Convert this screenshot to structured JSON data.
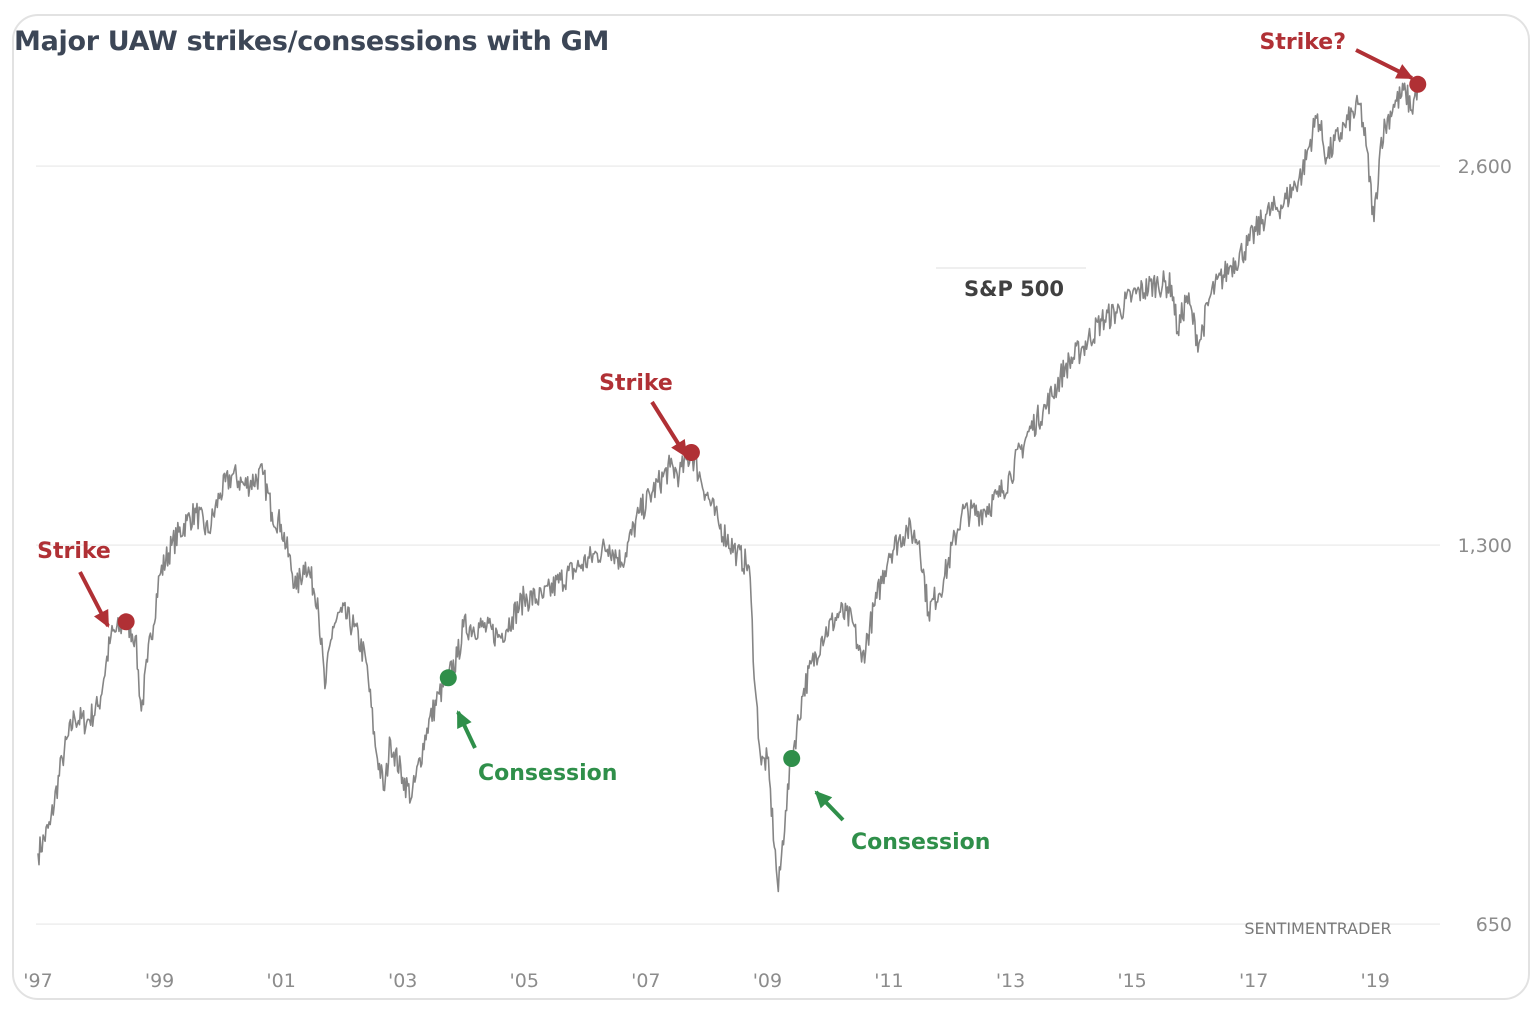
{
  "chart_data": {
    "type": "line",
    "title": "Major UAW strikes/consessions with GM",
    "series_label": "S&P 500",
    "y_scale": "log",
    "ylim": [
      620,
      3100
    ],
    "xlim": [
      1997.0,
      2020.0
    ],
    "grid": true,
    "y_ticks": [
      {
        "value": 650,
        "label": "650"
      },
      {
        "value": 1300,
        "label": "1,300"
      },
      {
        "value": 2600,
        "label": "2,600"
      }
    ],
    "x_ticks": [
      {
        "value": 1997.0,
        "label": "'97"
      },
      {
        "value": 1999.0,
        "label": "'99"
      },
      {
        "value": 2001.0,
        "label": "'01"
      },
      {
        "value": 2003.0,
        "label": "'03"
      },
      {
        "value": 2005.0,
        "label": "'05"
      },
      {
        "value": 2007.0,
        "label": "'07"
      },
      {
        "value": 2009.0,
        "label": "'09"
      },
      {
        "value": 2011.0,
        "label": "'11"
      },
      {
        "value": 2013.0,
        "label": "'13"
      },
      {
        "value": 2015.0,
        "label": "'15"
      },
      {
        "value": 2017.0,
        "label": "'17"
      },
      {
        "value": 2019.0,
        "label": "'19"
      }
    ],
    "series": [
      {
        "name": "S&P 500",
        "color": "#858585",
        "points": [
          [
            1997.0,
            740
          ],
          [
            1997.2,
            780
          ],
          [
            1997.4,
            880
          ],
          [
            1997.6,
            950
          ],
          [
            1997.8,
            940
          ],
          [
            1998.0,
            970
          ],
          [
            1998.2,
            1100
          ],
          [
            1998.45,
            1130
          ],
          [
            1998.6,
            1100
          ],
          [
            1998.7,
            960
          ],
          [
            1998.8,
            1050
          ],
          [
            1999.0,
            1230
          ],
          [
            1999.2,
            1300
          ],
          [
            1999.45,
            1360
          ],
          [
            1999.6,
            1380
          ],
          [
            1999.8,
            1330
          ],
          [
            2000.0,
            1430
          ],
          [
            2000.2,
            1480
          ],
          [
            2000.4,
            1450
          ],
          [
            2000.7,
            1480
          ],
          [
            2000.85,
            1380
          ],
          [
            2001.0,
            1350
          ],
          [
            2001.25,
            1200
          ],
          [
            2001.4,
            1260
          ],
          [
            2001.6,
            1180
          ],
          [
            2001.72,
            1000
          ],
          [
            2001.85,
            1120
          ],
          [
            2002.0,
            1150
          ],
          [
            2002.2,
            1120
          ],
          [
            2002.4,
            1050
          ],
          [
            2002.55,
            900
          ],
          [
            2002.7,
            830
          ],
          [
            2002.8,
            910
          ],
          [
            2003.0,
            850
          ],
          [
            2003.15,
            820
          ],
          [
            2003.4,
            930
          ],
          [
            2003.6,
            990
          ],
          [
            2003.75,
            1020
          ],
          [
            2003.9,
            1060
          ],
          [
            2004.0,
            1120
          ],
          [
            2004.3,
            1120
          ],
          [
            2004.6,
            1100
          ],
          [
            2004.8,
            1140
          ],
          [
            2005.0,
            1180
          ],
          [
            2005.3,
            1180
          ],
          [
            2005.6,
            1220
          ],
          [
            2005.9,
            1250
          ],
          [
            2006.2,
            1280
          ],
          [
            2006.4,
            1300
          ],
          [
            2006.6,
            1260
          ],
          [
            2006.9,
            1380
          ],
          [
            2007.1,
            1430
          ],
          [
            2007.4,
            1500
          ],
          [
            2007.55,
            1480
          ],
          [
            2007.75,
            1540
          ],
          [
            2007.9,
            1470
          ],
          [
            2008.2,
            1350
          ],
          [
            2008.5,
            1280
          ],
          [
            2008.7,
            1250
          ],
          [
            2008.8,
            1000
          ],
          [
            2008.9,
            870
          ],
          [
            2009.0,
            880
          ],
          [
            2009.18,
            690
          ],
          [
            2009.3,
            800
          ],
          [
            2009.4,
            880
          ],
          [
            2009.6,
            1000
          ],
          [
            2009.9,
            1100
          ],
          [
            2010.2,
            1150
          ],
          [
            2010.4,
            1130
          ],
          [
            2010.55,
            1050
          ],
          [
            2010.8,
            1180
          ],
          [
            2011.0,
            1280
          ],
          [
            2011.3,
            1340
          ],
          [
            2011.5,
            1310
          ],
          [
            2011.65,
            1150
          ],
          [
            2011.9,
            1220
          ],
          [
            2012.2,
            1380
          ],
          [
            2012.5,
            1380
          ],
          [
            2012.8,
            1420
          ],
          [
            2013.0,
            1480
          ],
          [
            2013.3,
            1600
          ],
          [
            2013.6,
            1680
          ],
          [
            2013.9,
            1800
          ],
          [
            2014.2,
            1870
          ],
          [
            2014.5,
            1960
          ],
          [
            2014.8,
            2000
          ],
          [
            2015.0,
            2050
          ],
          [
            2015.4,
            2100
          ],
          [
            2015.65,
            2090
          ],
          [
            2015.75,
            1920
          ],
          [
            2015.9,
            2050
          ],
          [
            2016.1,
            1880
          ],
          [
            2016.3,
            2060
          ],
          [
            2016.6,
            2160
          ],
          [
            2016.9,
            2250
          ],
          [
            2017.2,
            2380
          ],
          [
            2017.5,
            2430
          ],
          [
            2017.8,
            2570
          ],
          [
            2018.05,
            2860
          ],
          [
            2018.2,
            2640
          ],
          [
            2018.5,
            2800
          ],
          [
            2018.75,
            2910
          ],
          [
            2018.85,
            2700
          ],
          [
            2018.98,
            2350
          ],
          [
            2019.1,
            2740
          ],
          [
            2019.3,
            2910
          ],
          [
            2019.5,
            2980
          ],
          [
            2019.6,
            2880
          ],
          [
            2019.7,
            3020
          ]
        ]
      }
    ],
    "annotations": [
      {
        "label": "Strike",
        "x": 1998.45,
        "y": 1130,
        "kind": "strike",
        "color": "#b03035"
      },
      {
        "label": "Consession",
        "x": 2003.75,
        "y": 1020,
        "kind": "consession",
        "color": "#2f8f4a"
      },
      {
        "label": "Strike",
        "x": 2007.75,
        "y": 1540,
        "kind": "strike",
        "color": "#b03035"
      },
      {
        "label": "Consession",
        "x": 2009.4,
        "y": 880,
        "kind": "consession",
        "color": "#2f8f4a"
      },
      {
        "label": "Strike?",
        "x": 2019.7,
        "y": 3020,
        "kind": "strike",
        "color": "#b03035"
      }
    ],
    "watermark": "SENTIMENTRADER"
  }
}
